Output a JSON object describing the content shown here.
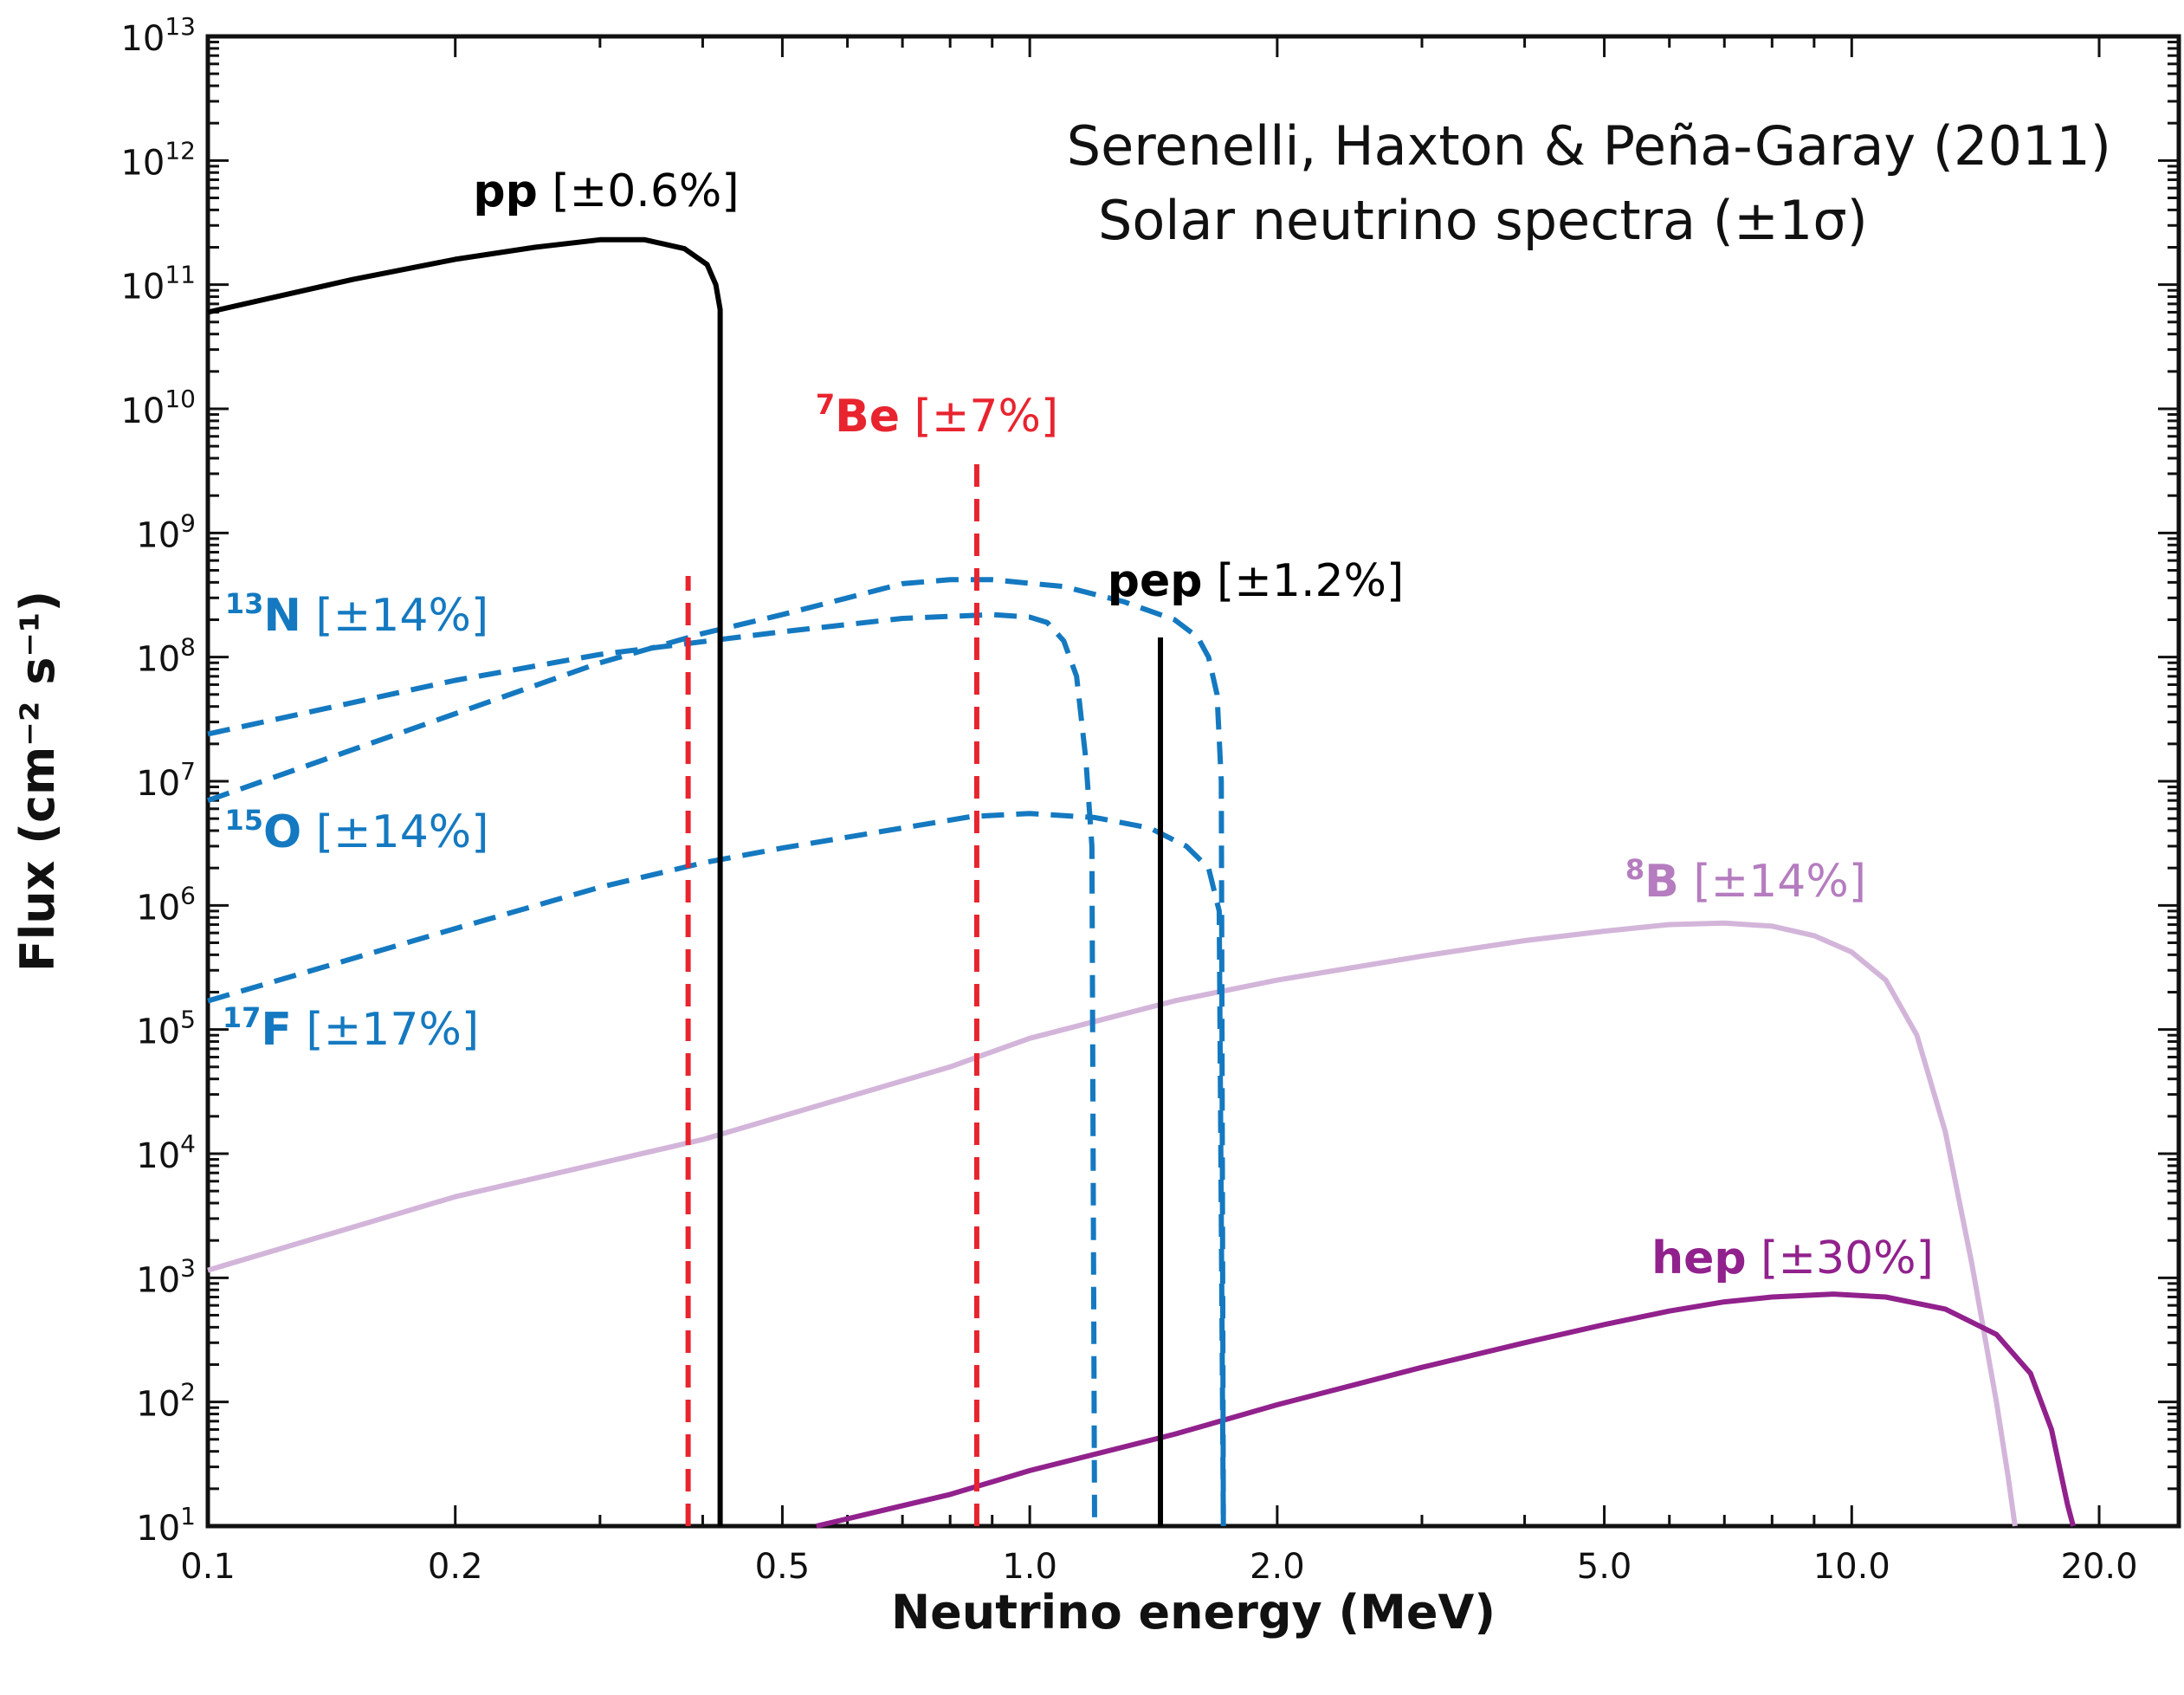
{
  "chart_data": {
    "type": "line",
    "title": "",
    "annotation_lines": [
      "Serenelli, Haxton & Peña-Garay (2011)",
      "Solar neutrino spectra (±1σ)"
    ],
    "xlabel": "Neutrino energy (MeV)",
    "ylabel": "Flux (cm⁻² s⁻¹)",
    "x_scale": "log",
    "y_scale": "log",
    "xlim": [
      0.1,
      25
    ],
    "ylim": [
      10,
      10000000000000
    ],
    "x_ticks": [
      {
        "value": 0.1,
        "label": "0.1"
      },
      {
        "value": 0.2,
        "label": "0.2"
      },
      {
        "value": 0.5,
        "label": "0.5"
      },
      {
        "value": 1.0,
        "label": "1.0"
      },
      {
        "value": 2.0,
        "label": "2.0"
      },
      {
        "value": 5.0,
        "label": "5.0"
      },
      {
        "value": 10.0,
        "label": "10.0"
      },
      {
        "value": 20.0,
        "label": "20.0"
      }
    ],
    "y_ticks": [
      {
        "exp": 1,
        "base": "10",
        "sup": "1"
      },
      {
        "exp": 2,
        "base": "10",
        "sup": "2"
      },
      {
        "exp": 3,
        "base": "10",
        "sup": "3"
      },
      {
        "exp": 4,
        "base": "10",
        "sup": "4"
      },
      {
        "exp": 5,
        "base": "10",
        "sup": "5"
      },
      {
        "exp": 6,
        "base": "10",
        "sup": "6"
      },
      {
        "exp": 7,
        "base": "10",
        "sup": "7"
      },
      {
        "exp": 8,
        "base": "10",
        "sup": "8"
      },
      {
        "exp": 9,
        "base": "10",
        "sup": "9"
      },
      {
        "exp": 10,
        "base": "10",
        "sup": "10"
      },
      {
        "exp": 11,
        "base": "10",
        "sup": "11"
      },
      {
        "exp": 12,
        "base": "10",
        "sup": "12"
      },
      {
        "exp": 13,
        "base": "10",
        "sup": "13"
      }
    ],
    "grid": false,
    "colors": {
      "pp": "#000000",
      "pep": "#000000",
      "be7": "#e8242f",
      "cno": "#1479c0",
      "b8": "#d3b5da",
      "b8_label": "#b57cbf",
      "hep": "#91218c"
    },
    "series": [
      {
        "name": "pp",
        "uncertainty": "±0.6%",
        "style": "solid",
        "color_key": "pp",
        "points": [
          [
            0.1,
            60000000000.0
          ],
          [
            0.15,
            110000000000.0
          ],
          [
            0.2,
            160000000000.0
          ],
          [
            0.25,
            200000000000.0
          ],
          [
            0.3,
            230000000000.0
          ],
          [
            0.34,
            230000000000.0
          ],
          [
            0.38,
            195000000000.0
          ],
          [
            0.405,
            145000000000.0
          ],
          [
            0.415,
            100000000000.0
          ],
          [
            0.42,
            63000000000.0
          ],
          [
            0.42,
            10
          ]
        ]
      },
      {
        "name": "13N",
        "uncertainty": "±14%",
        "style": "dashed",
        "color_key": "cno",
        "points": [
          [
            0.1,
            24000000.0
          ],
          [
            0.2,
            65000000.0
          ],
          [
            0.3,
            105000000.0
          ],
          [
            0.5,
            160000000.0
          ],
          [
            0.7,
            205000000.0
          ],
          [
            0.9,
            220000000.0
          ],
          [
            1.0,
            210000000.0
          ],
          [
            1.05,
            190000000.0
          ],
          [
            1.1,
            135000000.0
          ],
          [
            1.14,
            70000000.0
          ],
          [
            1.17,
            15000000.0
          ],
          [
            1.19,
            3000000.0
          ],
          [
            1.199,
            10
          ]
        ]
      },
      {
        "name": "15O",
        "uncertainty": "±14%",
        "style": "dashed",
        "color_key": "cno",
        "points": [
          [
            0.1,
            7000000.0
          ],
          [
            0.2,
            35000000.0
          ],
          [
            0.3,
            90000000.0
          ],
          [
            0.4,
            155000000.0
          ],
          [
            0.5,
            220000000.0
          ],
          [
            0.6,
            300000000.0
          ],
          [
            0.7,
            390000000.0
          ],
          [
            0.8,
            420000000.0
          ],
          [
            0.9,
            420000000.0
          ],
          [
            1.1,
            370000000.0
          ],
          [
            1.3,
            280000000.0
          ],
          [
            1.5,
            200000000.0
          ],
          [
            1.6,
            145000000.0
          ],
          [
            1.65,
            100000000.0
          ],
          [
            1.69,
            50000000.0
          ],
          [
            1.71,
            10000000.0
          ],
          [
            1.72,
            10
          ]
        ]
      },
      {
        "name": "17F",
        "uncertainty": "±17%",
        "style": "dashed",
        "color_key": "cno",
        "points": [
          [
            0.1,
            170000.0
          ],
          [
            0.2,
            650000.0
          ],
          [
            0.3,
            1400000.0
          ],
          [
            0.4,
            2200000.0
          ],
          [
            0.5,
            2900000.0
          ],
          [
            0.7,
            4200000.0
          ],
          [
            0.85,
            5200000.0
          ],
          [
            1.0,
            5500000.0
          ],
          [
            1.2,
            5100000.0
          ],
          [
            1.4,
            4200000.0
          ],
          [
            1.55,
            3000000.0
          ],
          [
            1.65,
            2000000.0
          ],
          [
            1.7,
            900000.0
          ],
          [
            1.72,
            10
          ]
        ]
      },
      {
        "name": "8B",
        "uncertainty": "±14%",
        "style": "solid",
        "color_key": "b8",
        "points": [
          [
            0.1,
            1150.0
          ],
          [
            0.2,
            4500.0
          ],
          [
            0.4,
            13000.0
          ],
          [
            0.8,
            50000.0
          ],
          [
            1.0,
            85000.0
          ],
          [
            1.5,
            170000.0
          ],
          [
            2.0,
            250000.0
          ],
          [
            3.0,
            390000.0
          ],
          [
            4.0,
            520000.0
          ],
          [
            5.0,
            620000.0
          ],
          [
            6.0,
            700000.0
          ],
          [
            7.0,
            720000.0
          ],
          [
            8.0,
            680000.0
          ],
          [
            9.0,
            570000.0
          ],
          [
            10.0,
            420000.0
          ],
          [
            11.0,
            250000.0
          ],
          [
            12.0,
            90000.0
          ],
          [
            13.0,
            15000.0
          ],
          [
            14.0,
            1300.0
          ],
          [
            15.0,
            100
          ],
          [
            15.5,
            25
          ],
          [
            15.8,
            10
          ]
        ]
      },
      {
        "name": "hep",
        "uncertainty": "±30%",
        "style": "solid",
        "color_key": "hep",
        "points": [
          [
            0.55,
            10
          ],
          [
            0.8,
            18
          ],
          [
            1.0,
            28
          ],
          [
            1.5,
            55
          ],
          [
            2.0,
            95
          ],
          [
            3.0,
            190
          ],
          [
            4.0,
            300
          ],
          [
            5.0,
            420
          ],
          [
            6.0,
            540
          ],
          [
            7.0,
            640
          ],
          [
            8.0,
            700
          ],
          [
            9.5,
            740
          ],
          [
            11.0,
            700
          ],
          [
            13.0,
            560
          ],
          [
            15.0,
            350
          ],
          [
            16.5,
            170
          ],
          [
            17.5,
            60
          ],
          [
            18.3,
            15
          ],
          [
            18.6,
            10
          ]
        ]
      },
      {
        "name": "7Be",
        "uncertainty": "±7%",
        "style": "dashed",
        "color_key": "be7",
        "kind": "line-lines",
        "lines": [
          {
            "energy": 0.384,
            "flux": 450000000.0
          },
          {
            "energy": 0.862,
            "flux": 4000000000.0
          }
        ]
      },
      {
        "name": "pep",
        "uncertainty": "±1.2%",
        "style": "solid",
        "color_key": "pep",
        "kind": "line-lines",
        "lines": [
          {
            "energy": 1.442,
            "flux": 144000000.0
          }
        ]
      }
    ],
    "labels": [
      {
        "series": "pp",
        "sup": "",
        "base": "pp",
        "suffix": " [±0.6%]",
        "color_key": "pp"
      },
      {
        "series": "7Be",
        "sup": "7",
        "base": "Be",
        "suffix": " [±7%]",
        "color_key": "be7"
      },
      {
        "series": "pep",
        "sup": "",
        "base": "pep",
        "suffix": " [±1.2%]",
        "color_key": "pep"
      },
      {
        "series": "13N",
        "sup": "13",
        "base": "N",
        "suffix": " [±14%]",
        "color_key": "cno"
      },
      {
        "series": "15O",
        "sup": "15",
        "base": "O",
        "suffix": " [±14%]",
        "color_key": "cno"
      },
      {
        "series": "17F",
        "sup": "17",
        "base": "F",
        "suffix": " [±17%]",
        "color_key": "cno"
      },
      {
        "series": "8B",
        "sup": "8",
        "base": "B",
        "suffix": " [±14%]",
        "color_key": "b8_label"
      },
      {
        "series": "hep",
        "sup": "",
        "base": "hep",
        "suffix": " [±30%]",
        "color_key": "hep"
      }
    ]
  }
}
